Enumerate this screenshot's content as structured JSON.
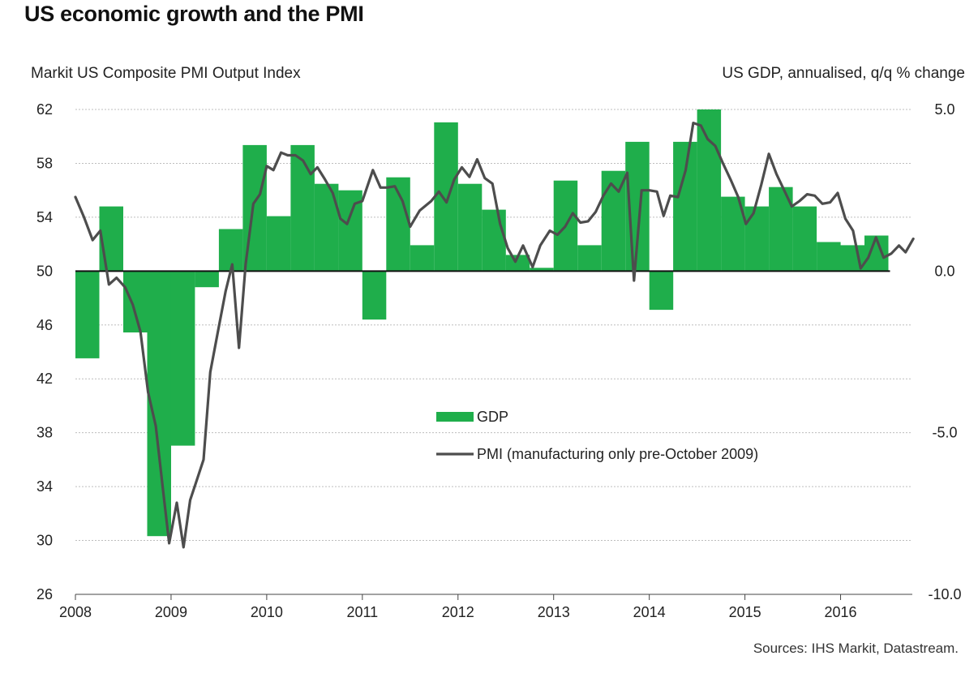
{
  "title": "US economic growth and the PMI",
  "source": "Sources: IHS Markit, Datastream.",
  "chart_data": {
    "type": "bar+line",
    "title": "US economic growth and the PMI",
    "left_axis": {
      "label": "Markit US Composite PMI Output Index",
      "range": [
        26,
        62
      ],
      "ticks": [
        62,
        58,
        54,
        50,
        46,
        42,
        38,
        34,
        30,
        26
      ]
    },
    "right_axis": {
      "label": "US GDP, annualised, q/q % change",
      "range": [
        -10,
        5
      ],
      "ticks": [
        "5.0",
        "0.0",
        "-5.0",
        "-10.0"
      ]
    },
    "x_axis": {
      "range": [
        2008,
        2016.75
      ],
      "ticks": [
        "2008",
        "2009",
        "2010",
        "2011",
        "2012",
        "2013",
        "2014",
        "2015",
        "2016"
      ]
    },
    "legend": {
      "position": "center",
      "entries": [
        "GDP",
        "PMI (manufacturing only pre-October 2009)"
      ]
    },
    "series": [
      {
        "name": "GDP",
        "kind": "bar",
        "color": "#1fae4b",
        "axis": "right",
        "values": [
          {
            "q": "2008 Q1",
            "v": -2.7
          },
          {
            "q": "2008 Q2",
            "v": 2.0
          },
          {
            "q": "2008 Q3",
            "v": -1.9
          },
          {
            "q": "2008 Q4",
            "v": -8.2
          },
          {
            "q": "2009 Q1",
            "v": -5.4
          },
          {
            "q": "2009 Q2",
            "v": -0.5
          },
          {
            "q": "2009 Q3",
            "v": 1.3
          },
          {
            "q": "2009 Q4",
            "v": 3.9
          },
          {
            "q": "2010 Q1",
            "v": 1.7
          },
          {
            "q": "2010 Q2",
            "v": 3.9
          },
          {
            "q": "2010 Q3",
            "v": 2.7
          },
          {
            "q": "2010 Q4",
            "v": 2.5
          },
          {
            "q": "2011 Q1",
            "v": -1.5
          },
          {
            "q": "2011 Q2",
            "v": 2.9
          },
          {
            "q": "2011 Q3",
            "v": 0.8
          },
          {
            "q": "2011 Q4",
            "v": 4.6
          },
          {
            "q": "2012 Q1",
            "v": 2.7
          },
          {
            "q": "2012 Q2",
            "v": 1.9
          },
          {
            "q": "2012 Q3",
            "v": 0.5
          },
          {
            "q": "2012 Q4",
            "v": 0.1
          },
          {
            "q": "2013 Q1",
            "v": 2.8
          },
          {
            "q": "2013 Q2",
            "v": 0.8
          },
          {
            "q": "2013 Q3",
            "v": 3.1
          },
          {
            "q": "2013 Q4",
            "v": 4.0
          },
          {
            "q": "2014 Q1",
            "v": -1.2
          },
          {
            "q": "2014 Q2",
            "v": 4.0
          },
          {
            "q": "2014 Q3",
            "v": 5.0
          },
          {
            "q": "2014 Q4",
            "v": 2.3
          },
          {
            "q": "2015 Q1",
            "v": 2.0
          },
          {
            "q": "2015 Q2",
            "v": 2.6
          },
          {
            "q": "2015 Q3",
            "v": 2.0
          },
          {
            "q": "2015 Q4",
            "v": 0.9
          },
          {
            "q": "2016 Q1",
            "v": 0.8
          },
          {
            "q": "2016 Q2",
            "v": 1.1
          }
        ]
      },
      {
        "name": "PMI (manufacturing only pre-October 2009)",
        "kind": "line",
        "color": "#4d4d4d",
        "axis": "left",
        "values": [
          {
            "t": 2008.0,
            "v": 55.5
          },
          {
            "t": 2008.09,
            "v": 54.0
          },
          {
            "t": 2008.18,
            "v": 52.3
          },
          {
            "t": 2008.26,
            "v": 53.0
          },
          {
            "t": 2008.35,
            "v": 49.0
          },
          {
            "t": 2008.43,
            "v": 49.5
          },
          {
            "t": 2008.52,
            "v": 48.8
          },
          {
            "t": 2008.6,
            "v": 47.5
          },
          {
            "t": 2008.68,
            "v": 45.5
          },
          {
            "t": 2008.76,
            "v": 41.0
          },
          {
            "t": 2008.84,
            "v": 38.5
          },
          {
            "t": 2008.92,
            "v": 33.5
          },
          {
            "t": 2008.98,
            "v": 29.8
          },
          {
            "t": 2009.06,
            "v": 32.8
          },
          {
            "t": 2009.13,
            "v": 29.5
          },
          {
            "t": 2009.2,
            "v": 33.0
          },
          {
            "t": 2009.27,
            "v": 34.5
          },
          {
            "t": 2009.34,
            "v": 36.0
          },
          {
            "t": 2009.41,
            "v": 42.5
          },
          {
            "t": 2009.49,
            "v": 45.5
          },
          {
            "t": 2009.57,
            "v": 48.5
          },
          {
            "t": 2009.64,
            "v": 50.5
          },
          {
            "t": 2009.71,
            "v": 44.3
          },
          {
            "t": 2009.78,
            "v": 50.5
          },
          {
            "t": 2009.86,
            "v": 55.0
          },
          {
            "t": 2009.93,
            "v": 55.7
          },
          {
            "t": 2010.0,
            "v": 57.8
          },
          {
            "t": 2010.07,
            "v": 57.5
          },
          {
            "t": 2010.15,
            "v": 58.8
          },
          {
            "t": 2010.22,
            "v": 58.6
          },
          {
            "t": 2010.3,
            "v": 58.6
          },
          {
            "t": 2010.38,
            "v": 58.2
          },
          {
            "t": 2010.46,
            "v": 57.2
          },
          {
            "t": 2010.53,
            "v": 57.7
          },
          {
            "t": 2010.61,
            "v": 56.8
          },
          {
            "t": 2010.69,
            "v": 55.8
          },
          {
            "t": 2010.77,
            "v": 53.9
          },
          {
            "t": 2010.84,
            "v": 53.5
          },
          {
            "t": 2010.92,
            "v": 55.0
          },
          {
            "t": 2011.0,
            "v": 55.2
          },
          {
            "t": 2011.11,
            "v": 57.5
          },
          {
            "t": 2011.19,
            "v": 56.2
          },
          {
            "t": 2011.26,
            "v": 56.2
          },
          {
            "t": 2011.34,
            "v": 56.3
          },
          {
            "t": 2011.42,
            "v": 55.2
          },
          {
            "t": 2011.5,
            "v": 53.3
          },
          {
            "t": 2011.6,
            "v": 54.5
          },
          {
            "t": 2011.72,
            "v": 55.2
          },
          {
            "t": 2011.8,
            "v": 55.9
          },
          {
            "t": 2011.88,
            "v": 55.1
          },
          {
            "t": 2011.96,
            "v": 56.8
          },
          {
            "t": 2012.04,
            "v": 57.7
          },
          {
            "t": 2012.12,
            "v": 57.0
          },
          {
            "t": 2012.2,
            "v": 58.3
          },
          {
            "t": 2012.28,
            "v": 56.9
          },
          {
            "t": 2012.36,
            "v": 56.5
          },
          {
            "t": 2012.44,
            "v": 53.5
          },
          {
            "t": 2012.52,
            "v": 51.7
          },
          {
            "t": 2012.6,
            "v": 50.7
          },
          {
            "t": 2012.68,
            "v": 51.9
          },
          {
            "t": 2012.78,
            "v": 50.3
          },
          {
            "t": 2012.86,
            "v": 51.9
          },
          {
            "t": 2012.96,
            "v": 53.0
          },
          {
            "t": 2013.04,
            "v": 52.7
          },
          {
            "t": 2013.12,
            "v": 53.3
          },
          {
            "t": 2013.2,
            "v": 54.3
          },
          {
            "t": 2013.28,
            "v": 53.6
          },
          {
            "t": 2013.36,
            "v": 53.7
          },
          {
            "t": 2013.44,
            "v": 54.4
          },
          {
            "t": 2013.52,
            "v": 55.6
          },
          {
            "t": 2013.6,
            "v": 56.5
          },
          {
            "t": 2013.68,
            "v": 55.9
          },
          {
            "t": 2013.77,
            "v": 57.3
          },
          {
            "t": 2013.84,
            "v": 49.3
          },
          {
            "t": 2013.92,
            "v": 56.0
          },
          {
            "t": 2014.0,
            "v": 56.0
          },
          {
            "t": 2014.08,
            "v": 55.9
          },
          {
            "t": 2014.15,
            "v": 54.1
          },
          {
            "t": 2014.22,
            "v": 55.6
          },
          {
            "t": 2014.3,
            "v": 55.5
          },
          {
            "t": 2014.38,
            "v": 57.5
          },
          {
            "t": 2014.46,
            "v": 61.0
          },
          {
            "t": 2014.54,
            "v": 60.8
          },
          {
            "t": 2014.61,
            "v": 59.8
          },
          {
            "t": 2014.69,
            "v": 59.3
          },
          {
            "t": 2014.77,
            "v": 58.0
          },
          {
            "t": 2014.85,
            "v": 56.8
          },
          {
            "t": 2014.93,
            "v": 55.5
          },
          {
            "t": 2015.01,
            "v": 53.5
          },
          {
            "t": 2015.09,
            "v": 54.3
          },
          {
            "t": 2015.17,
            "v": 56.4
          },
          {
            "t": 2015.25,
            "v": 58.7
          },
          {
            "t": 2015.33,
            "v": 57.2
          },
          {
            "t": 2015.41,
            "v": 56.0
          },
          {
            "t": 2015.49,
            "v": 54.8
          },
          {
            "t": 2015.57,
            "v": 55.2
          },
          {
            "t": 2015.65,
            "v": 55.7
          },
          {
            "t": 2015.73,
            "v": 55.6
          },
          {
            "t": 2015.81,
            "v": 55.0
          },
          {
            "t": 2015.89,
            "v": 55.1
          },
          {
            "t": 2015.97,
            "v": 55.8
          },
          {
            "t": 2016.05,
            "v": 53.9
          },
          {
            "t": 2016.13,
            "v": 53.0
          },
          {
            "t": 2016.21,
            "v": 50.2
          },
          {
            "t": 2016.29,
            "v": 51.0
          },
          {
            "t": 2016.37,
            "v": 52.5
          },
          {
            "t": 2016.45,
            "v": 51.0
          },
          {
            "t": 2016.53,
            "v": 51.3
          },
          {
            "t": 2016.61,
            "v": 51.9
          },
          {
            "t": 2016.68,
            "v": 51.4
          },
          {
            "t": 2016.76,
            "v": 52.4
          }
        ]
      }
    ]
  }
}
